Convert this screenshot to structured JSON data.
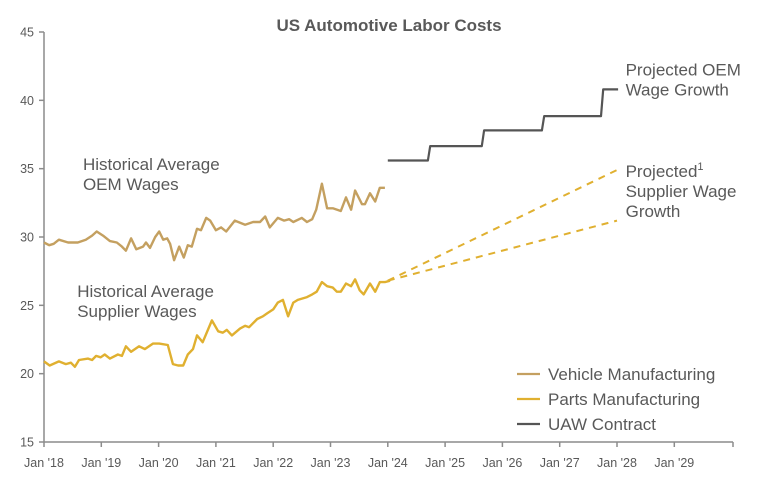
{
  "chart_data": {
    "type": "line",
    "title": "US Automotive Labor Costs",
    "xlabel": "",
    "ylabel": "",
    "ylim": [
      15,
      45
    ],
    "xlim": [
      2018.0,
      2030.0
    ],
    "grid": false,
    "yticks": [
      15,
      20,
      25,
      30,
      35,
      40,
      45
    ],
    "xticks": [
      {
        "value": 2018,
        "label": "Jan '18"
      },
      {
        "value": 2019,
        "label": "Jan '19"
      },
      {
        "value": 2020,
        "label": "Jan '20"
      },
      {
        "value": 2021,
        "label": "Jan '21"
      },
      {
        "value": 2022,
        "label": "Jan '22"
      },
      {
        "value": 2023,
        "label": "Jan '23"
      },
      {
        "value": 2024,
        "label": "Jan '24"
      },
      {
        "value": 2025,
        "label": "Jan '25"
      },
      {
        "value": 2026,
        "label": "Jan '26"
      },
      {
        "value": 2027,
        "label": "Jan '27"
      },
      {
        "value": 2028,
        "label": "Jan '28"
      },
      {
        "value": 2029,
        "label": "Jan '29"
      }
    ],
    "legend_position": "bottom-right",
    "series": [
      {
        "name": "Vehicle Manufacturing",
        "color": "#c4a060",
        "style": "solid",
        "x": [
          2018.0,
          2018.09,
          2018.17,
          2018.26,
          2018.42,
          2018.59,
          2018.73,
          2018.84,
          2018.92,
          2019.03,
          2019.15,
          2019.27,
          2019.36,
          2019.43,
          2019.52,
          2019.61,
          2019.73,
          2019.78,
          2019.85,
          2019.94,
          2020.01,
          2020.08,
          2020.15,
          2020.2,
          2020.27,
          2020.36,
          2020.44,
          2020.51,
          2020.58,
          2020.67,
          2020.74,
          2020.83,
          2020.9,
          2021.0,
          2021.09,
          2021.18,
          2021.33,
          2021.51,
          2021.65,
          2021.77,
          2021.86,
          2021.94,
          2022.08,
          2022.19,
          2022.28,
          2022.35,
          2022.5,
          2022.59,
          2022.68,
          2022.75,
          2022.85,
          2022.94,
          2023.04,
          2023.18,
          2023.27,
          2023.36,
          2023.43,
          2023.55,
          2023.6,
          2023.69,
          2023.78,
          2023.86,
          2023.95
        ],
        "values": [
          29.6,
          29.4,
          29.5,
          29.8,
          29.6,
          29.6,
          29.8,
          30.1,
          30.4,
          30.1,
          29.7,
          29.6,
          29.3,
          29.0,
          29.9,
          29.1,
          29.3,
          29.6,
          29.2,
          30.0,
          30.4,
          29.8,
          29.9,
          29.5,
          28.3,
          29.3,
          28.5,
          29.4,
          29.3,
          30.6,
          30.5,
          31.4,
          31.2,
          30.5,
          30.7,
          30.4,
          31.2,
          30.9,
          31.1,
          31.1,
          31.5,
          30.7,
          31.4,
          31.2,
          31.3,
          31.1,
          31.4,
          31.1,
          31.3,
          32.0,
          33.9,
          32.1,
          32.1,
          31.9,
          32.9,
          32.0,
          33.4,
          32.4,
          32.4,
          33.2,
          32.6,
          33.6,
          33.6
        ]
      },
      {
        "name": "Parts Manufacturing",
        "color": "#e0b030",
        "style": "solid",
        "x": [
          2018.0,
          2018.1,
          2018.26,
          2018.38,
          2018.47,
          2018.54,
          2018.61,
          2018.77,
          2018.84,
          2018.91,
          2018.99,
          2019.06,
          2019.15,
          2019.29,
          2019.36,
          2019.43,
          2019.52,
          2019.66,
          2019.76,
          2019.9,
          2020.01,
          2020.16,
          2020.25,
          2020.34,
          2020.43,
          2020.51,
          2020.6,
          2020.67,
          2020.77,
          2020.93,
          2021.04,
          2021.12,
          2021.19,
          2021.28,
          2021.42,
          2021.51,
          2021.58,
          2021.72,
          2021.82,
          2021.89,
          2022.0,
          2022.08,
          2022.17,
          2022.26,
          2022.35,
          2022.43,
          2022.59,
          2022.68,
          2022.76,
          2022.85,
          2022.94,
          2023.04,
          2023.11,
          2023.18,
          2023.27,
          2023.36,
          2023.43,
          2023.51,
          2023.58,
          2023.69,
          2023.78,
          2023.86,
          2023.95,
          2024.04
        ],
        "values": [
          20.9,
          20.6,
          20.9,
          20.7,
          20.8,
          20.5,
          21.0,
          21.1,
          21.0,
          21.3,
          21.2,
          21.4,
          21.1,
          21.4,
          21.3,
          22.0,
          21.6,
          22.0,
          21.8,
          22.2,
          22.2,
          22.1,
          20.7,
          20.6,
          20.6,
          21.4,
          21.8,
          22.8,
          22.3,
          23.9,
          23.1,
          23.0,
          23.2,
          22.8,
          23.3,
          23.5,
          23.4,
          24.0,
          24.2,
          24.4,
          24.7,
          25.2,
          25.4,
          24.2,
          25.2,
          25.4,
          25.6,
          25.8,
          26.0,
          26.7,
          26.4,
          26.3,
          26.0,
          26.0,
          26.6,
          26.4,
          26.9,
          26.1,
          25.8,
          26.6,
          26.0,
          26.7,
          26.7,
          26.8
        ]
      },
      {
        "name": "UAW Contract",
        "color": "#555555",
        "style": "step",
        "x": [
          2024.0,
          2024.7,
          2024.74,
          2025.64,
          2025.68,
          2026.69,
          2026.73,
          2027.72,
          2027.76,
          2028.02
        ],
        "values": [
          35.6,
          35.6,
          36.65,
          36.65,
          37.8,
          37.8,
          38.85,
          38.85,
          40.8,
          40.8
        ]
      },
      {
        "name": "Projected Supplier Wage Growth (high)",
        "color": "#e0b030",
        "style": "dashed",
        "legend": false,
        "x": [
          2024.0,
          2028.0
        ],
        "values": [
          26.8,
          34.9
        ]
      },
      {
        "name": "Projected Supplier Wage Growth (low)",
        "color": "#e0b030",
        "style": "dashed",
        "legend": false,
        "x": [
          2024.0,
          2028.0
        ],
        "values": [
          26.8,
          31.2
        ]
      }
    ],
    "annotations": [
      {
        "id": "oem-hist",
        "lines": [
          "Historical Average",
          "OEM Wages"
        ],
        "x": 2018.68,
        "y": 34.9
      },
      {
        "id": "supplier-hist",
        "lines": [
          "Historical Average",
          "Supplier Wages"
        ],
        "x": 2018.58,
        "y": 25.6
      },
      {
        "id": "proj-oem",
        "lines": [
          "Projected OEM",
          "Wage Growth"
        ],
        "x": 2028.15,
        "y": 41.8
      },
      {
        "id": "proj-supplier",
        "lines": [
          "Projected",
          "Supplier Wage",
          "Growth"
        ],
        "superscript": "1",
        "x": 2028.15,
        "y": 34.4
      }
    ],
    "legend": [
      {
        "label": "Vehicle Manufacturing",
        "color": "#c4a060"
      },
      {
        "label": "Parts Manufacturing",
        "color": "#e0b030"
      },
      {
        "label": "UAW Contract",
        "color": "#555555"
      }
    ]
  }
}
